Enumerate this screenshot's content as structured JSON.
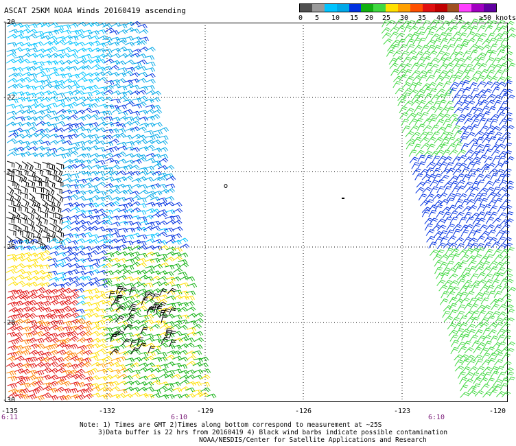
{
  "title": "ASCAT 25KM NOAA Winds 20160419 ascending",
  "scale": {
    "colors": [
      "#505050",
      "#9a9a9a",
      "#00c4ff",
      "#00a8e8",
      "#0030e0",
      "#10b010",
      "#40d840",
      "#ffe000",
      "#ffa000",
      "#ff5000",
      "#e01010",
      "#c00000",
      "#a05020",
      "#ff40ff",
      "#a000c0",
      "#6000a0"
    ],
    "labels": [
      "0",
      "5",
      "10",
      "15",
      "20",
      "25",
      "30",
      "35",
      "40",
      "45",
      "≥50 knots"
    ]
  },
  "axes": {
    "lat_labels": [
      "-20",
      "-22",
      "-24",
      "-26",
      "-28",
      "-30"
    ],
    "lon_labels": [
      "-135",
      "-132",
      "-129",
      "-126",
      "-123",
      "-120"
    ]
  },
  "times": [
    "6:11",
    "6:10",
    "6:10"
  ],
  "notes": [
    "Note: 1) Times are GMT 2)Times along bottom correspond to measurement at ~25S",
    "3)Data buffer is 22 hrs from 20160419 4) Black wind barbs indicate possible contamination",
    "NOAA/NESDIS/Center for Satellite Applications and Research"
  ]
}
